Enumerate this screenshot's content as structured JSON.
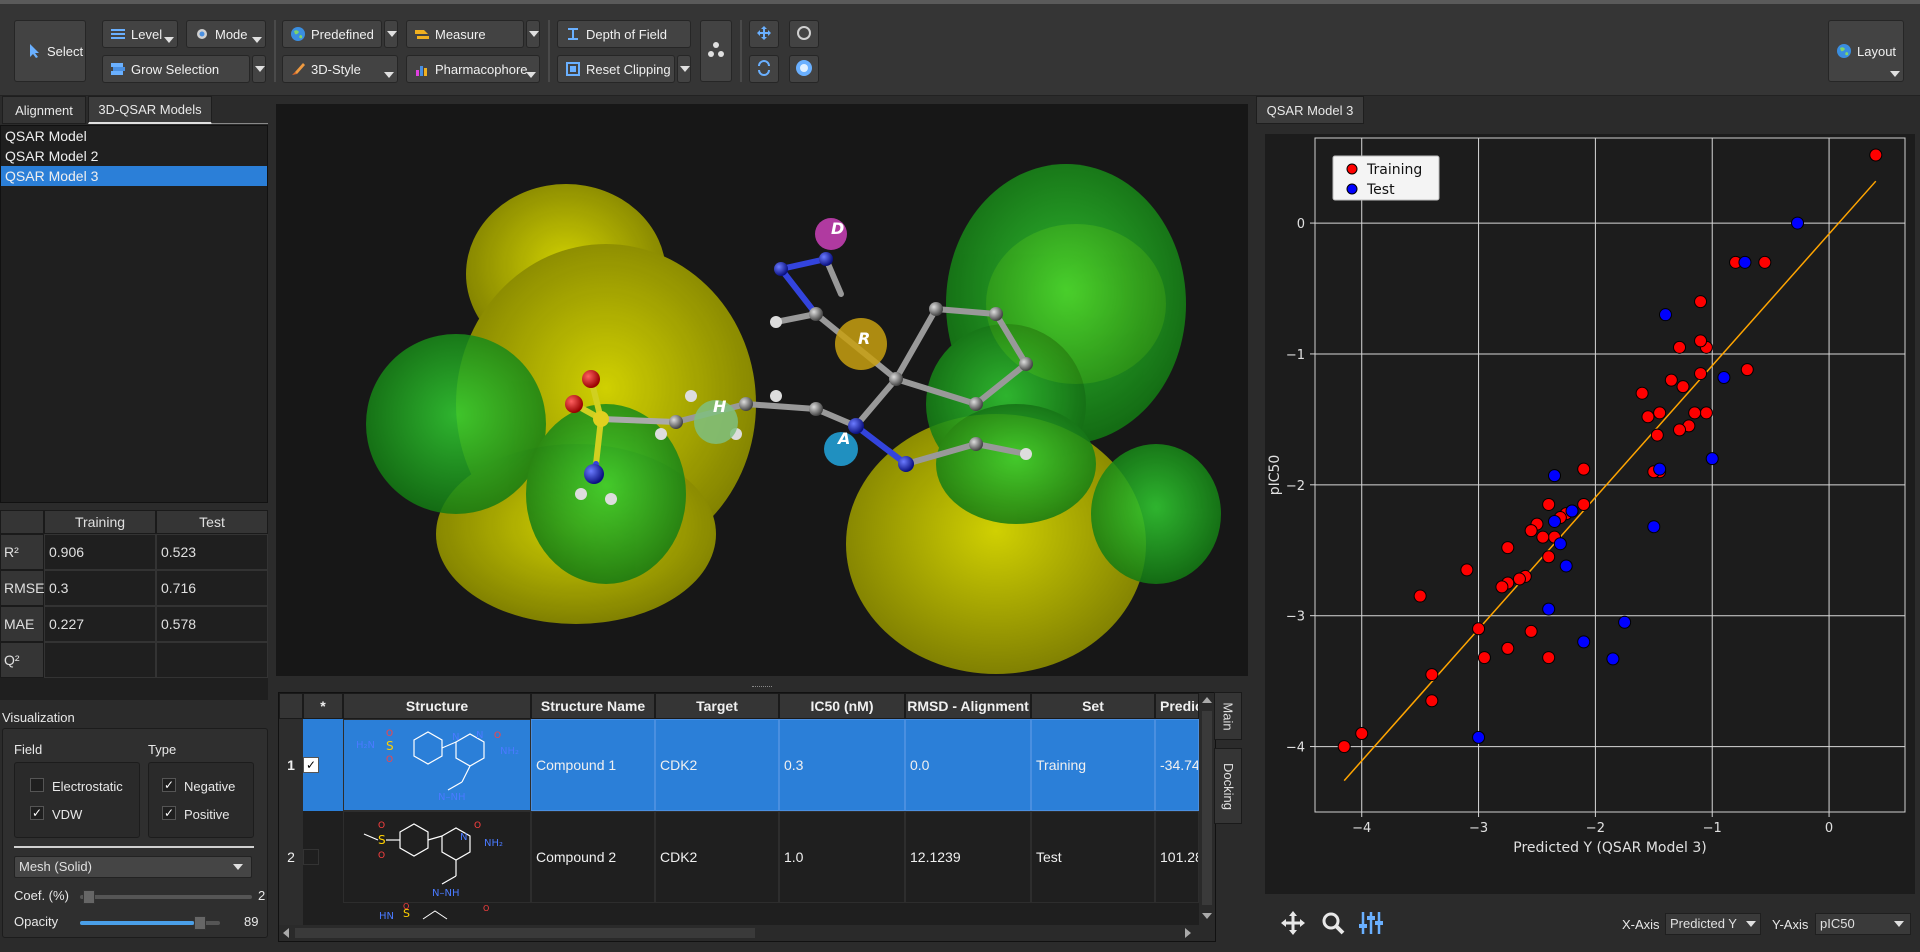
{
  "toolbar": {
    "select": "Select",
    "level": "Level",
    "mode": "Mode",
    "grow_selection": "Grow Selection",
    "predefined": "Predefined",
    "measure": "Measure",
    "style_3d": "3D-Style",
    "pharmacophore": "Pharmacophore",
    "depth_of_field": "Depth of Field",
    "reset_clipping": "Reset Clipping",
    "layout": "Layout"
  },
  "left_tabs": [
    "Alignment",
    "3D-QSAR Models"
  ],
  "models": [
    "QSAR Model",
    "QSAR Model 2",
    "QSAR Model 3"
  ],
  "selected_model": 2,
  "stats": {
    "headers": [
      "Training",
      "Test"
    ],
    "rows": [
      {
        "label": "R²",
        "training": "0.906",
        "test": "0.523"
      },
      {
        "label": "RMSE",
        "training": "0.3",
        "test": "0.716"
      },
      {
        "label": "MAE",
        "training": "0.227",
        "test": "0.578"
      },
      {
        "label": "Q²",
        "training": "",
        "test": ""
      }
    ]
  },
  "visualization": {
    "title": "Visualization",
    "field_label": "Field",
    "type_label": "Type",
    "electrostatic": "Electrostatic",
    "vdw": "VDW",
    "negative": "Negative",
    "positive": "Positive",
    "style": "Mesh (Solid)",
    "coef_label": "Coef. (%)",
    "coef_value": "2",
    "coef_fraction": 0.02,
    "opacity_label": "Opacity",
    "opacity_value": "89",
    "opacity_fraction": 0.89
  },
  "viewer_labels": {
    "d": "D",
    "r": "R",
    "h": "H",
    "a": "A"
  },
  "table": {
    "headers": [
      "*",
      "Structure",
      "Structure Name",
      "Target",
      "IC50 (nM)",
      "RMSD - Alignment",
      "Set",
      "Predicted"
    ],
    "rows": [
      {
        "num": "1",
        "checked": true,
        "name": "Compound 1",
        "target": "CDK2",
        "ic50": "0.3",
        "rmsd": "0.0",
        "set": "Training",
        "pred": "-34.74"
      },
      {
        "num": "2",
        "checked": false,
        "name": "Compound 2",
        "target": "CDK2",
        "ic50": "1.0",
        "rmsd": "12.1239",
        "set": "Test",
        "pred": "101.28"
      }
    ]
  },
  "side_tabs": [
    "Main",
    "Docking"
  ],
  "right_tab": "QSAR Model 3",
  "plot_controls": {
    "x_axis_label": "X-Axis",
    "x_axis_value": "Predicted Y",
    "y_axis_label": "Y-Axis",
    "y_axis_value": "pIC50"
  },
  "colors": {
    "training": "#ff0000",
    "test": "#0000ff",
    "fit_line": "#ffa500",
    "selection": "#2b7fd8",
    "iso_yellow": "#c8c800",
    "iso_green": "#22b522"
  },
  "chart_data": {
    "type": "scatter",
    "title": "",
    "xlabel": "Predicted Y (QSAR Model 3)",
    "ylabel": "pIC50",
    "xlim": [
      -4.4,
      0.65
    ],
    "ylim": [
      -4.5,
      0.65
    ],
    "xticks": [
      "−4",
      "−3",
      "−2",
      "−1",
      "0"
    ],
    "xtick_values": [
      -4,
      -3,
      -2,
      -1,
      0
    ],
    "yticks": [
      "−4",
      "−3",
      "−2",
      "−1",
      "0"
    ],
    "ytick_values": [
      -4,
      -3,
      -2,
      -1,
      0
    ],
    "grid": true,
    "legend": "top-left",
    "fit_line": [
      [
        -4.15,
        -4.26
      ],
      [
        0.4,
        0.32
      ]
    ],
    "series": [
      {
        "name": "Training",
        "color": "#ff0000",
        "points": [
          [
            0.4,
            0.52
          ],
          [
            -0.8,
            -0.3
          ],
          [
            -0.55,
            -0.3
          ],
          [
            -0.7,
            -1.12
          ],
          [
            -1.1,
            -0.6
          ],
          [
            -1.05,
            -0.95
          ],
          [
            -1.1,
            -0.9
          ],
          [
            -1.1,
            -1.15
          ],
          [
            -1.28,
            -0.95
          ],
          [
            -1.25,
            -1.25
          ],
          [
            -1.35,
            -1.2
          ],
          [
            -1.05,
            -1.45
          ],
          [
            -1.15,
            -1.45
          ],
          [
            -1.2,
            -1.55
          ],
          [
            -1.28,
            -1.58
          ],
          [
            -1.45,
            -1.45
          ],
          [
            -1.6,
            -1.3
          ],
          [
            -1.55,
            -1.48
          ],
          [
            -1.47,
            -1.62
          ],
          [
            -1.45,
            -1.9
          ],
          [
            -1.5,
            -1.9
          ],
          [
            -2.1,
            -1.88
          ],
          [
            -2.1,
            -2.15
          ],
          [
            -2.2,
            -2.2
          ],
          [
            -2.25,
            -2.22
          ],
          [
            -2.3,
            -2.25
          ],
          [
            -2.4,
            -2.15
          ],
          [
            -2.35,
            -2.4
          ],
          [
            -2.5,
            -2.3
          ],
          [
            -2.55,
            -2.35
          ],
          [
            -2.45,
            -2.4
          ],
          [
            -2.4,
            -2.55
          ],
          [
            -2.6,
            -2.7
          ],
          [
            -2.65,
            -2.72
          ],
          [
            -2.75,
            -2.75
          ],
          [
            -2.8,
            -2.78
          ],
          [
            -2.75,
            -2.48
          ],
          [
            -3.1,
            -2.65
          ],
          [
            -3.5,
            -2.85
          ],
          [
            -3.0,
            -3.1
          ],
          [
            -2.55,
            -3.12
          ],
          [
            -2.75,
            -3.25
          ],
          [
            -2.4,
            -3.32
          ],
          [
            -2.95,
            -3.32
          ],
          [
            -3.4,
            -3.45
          ],
          [
            -3.4,
            -3.65
          ],
          [
            -4.0,
            -3.9
          ],
          [
            -4.15,
            -4.0
          ]
        ]
      },
      {
        "name": "Test",
        "color": "#0000ff",
        "points": [
          [
            -0.27,
            0.0
          ],
          [
            -0.72,
            -0.3
          ],
          [
            -0.9,
            -1.18
          ],
          [
            -1.4,
            -0.7
          ],
          [
            -1.0,
            -1.8
          ],
          [
            -1.45,
            -1.88
          ],
          [
            -1.5,
            -2.32
          ],
          [
            -2.35,
            -1.93
          ],
          [
            -2.2,
            -2.2
          ],
          [
            -2.35,
            -2.28
          ],
          [
            -2.3,
            -2.45
          ],
          [
            -2.25,
            -2.62
          ],
          [
            -2.4,
            -2.95
          ],
          [
            -2.1,
            -3.2
          ],
          [
            -1.75,
            -3.05
          ],
          [
            -1.85,
            -3.33
          ],
          [
            -3.0,
            -3.93
          ]
        ]
      }
    ]
  }
}
